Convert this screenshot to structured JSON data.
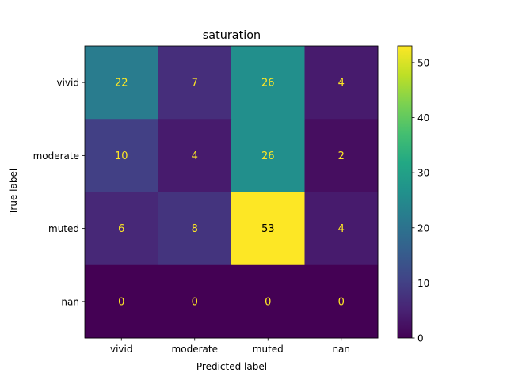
{
  "chart_data": {
    "type": "heatmap",
    "title": "saturation",
    "xlabel": "Predicted label",
    "ylabel": "True label",
    "x_categories": [
      "vivid",
      "moderate",
      "muted",
      "nan"
    ],
    "y_categories": [
      "vivid",
      "moderate",
      "muted",
      "nan"
    ],
    "values": [
      [
        22,
        7,
        26,
        4
      ],
      [
        10,
        4,
        26,
        2
      ],
      [
        6,
        8,
        53,
        4
      ],
      [
        0,
        0,
        0,
        0
      ]
    ],
    "colormap": "viridis",
    "color_range": [
      0,
      53
    ],
    "colorbar_ticks": [
      0,
      10,
      20,
      30,
      40,
      50
    ],
    "text_color_light": "#fde725",
    "text_color_dark": "#000000",
    "grid": false
  }
}
